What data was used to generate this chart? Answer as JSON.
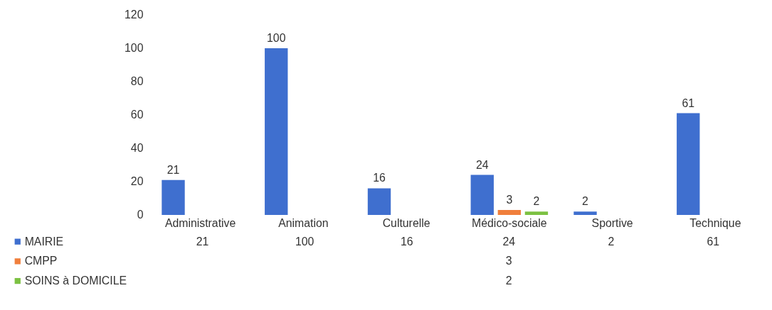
{
  "chart_data": {
    "type": "bar",
    "categories": [
      "Administrative",
      "Animation",
      "Culturelle",
      "Médico-sociale",
      "Sportive",
      "Technique"
    ],
    "series": [
      {
        "name": "MAIRIE",
        "color": "#3f6fcf",
        "values": [
          21,
          100,
          16,
          24,
          2,
          61
        ]
      },
      {
        "name": "CMPP",
        "color": "#f07f3c",
        "values": [
          null,
          null,
          null,
          3,
          null,
          null
        ]
      },
      {
        "name": "SOINS à DOMICILE",
        "color": "#7cc142",
        "values": [
          null,
          null,
          null,
          2,
          null,
          null
        ]
      }
    ],
    "ylim": [
      0,
      120
    ],
    "yticks": [
      0,
      20,
      40,
      60,
      80,
      100,
      120
    ],
    "data_labels": true,
    "grid": false,
    "legend": "bottom",
    "annotations": [
      "21",
      "100",
      "16",
      "24",
      "2",
      "61",
      "3",
      "2"
    ]
  }
}
